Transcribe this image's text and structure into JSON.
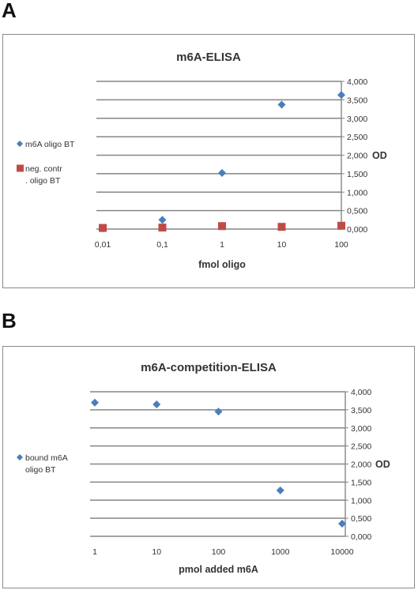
{
  "panels": [
    {
      "label": "A"
    },
    {
      "label": "B"
    }
  ],
  "chart_data": [
    {
      "type": "scatter",
      "title": "m6A-ELISA",
      "xlabel": "fmol oligo",
      "ylabel": "OD",
      "x_scale": "log",
      "x_ticks": [
        "0,01",
        "0,1",
        "1",
        "10",
        "100"
      ],
      "y_ticks": [
        "4,000",
        "3,500",
        "3,000",
        "2,500",
        "2,000",
        "1,500",
        "1,000",
        "0,500",
        "0,000"
      ],
      "ylim": [
        0,
        4
      ],
      "grid": true,
      "legend_position": "left",
      "colors": {
        "series_1": "#4a7ebb",
        "series_2": "#be4b48",
        "grid": "#868686"
      },
      "series": [
        {
          "name": "m6A oligo BT",
          "marker": "diamond",
          "x": [
            0.01,
            0.1,
            1,
            10,
            100
          ],
          "y": [
            0.02,
            0.25,
            1.52,
            3.37,
            3.63
          ]
        },
        {
          "name": "neg. contr. oligo BT",
          "marker": "square",
          "x": [
            0.01,
            0.1,
            1,
            10,
            100
          ],
          "y": [
            0.03,
            0.04,
            0.08,
            0.06,
            0.09
          ]
        }
      ]
    },
    {
      "type": "scatter",
      "title": "m6A-competition-ELISA",
      "xlabel": "pmol added m6A",
      "ylabel": "OD",
      "x_scale": "log",
      "x_ticks": [
        "1",
        "10",
        "100",
        "1000",
        "10000"
      ],
      "y_ticks": [
        "4,000",
        "3,500",
        "3,000",
        "2,500",
        "2,000",
        "1,500",
        "1,000",
        "0,500",
        "0,000"
      ],
      "ylim": [
        0,
        4
      ],
      "grid": true,
      "legend_position": "left",
      "colors": {
        "series_1": "#4a7ebb",
        "grid": "#868686"
      },
      "series": [
        {
          "name": "bound m6A oligo BT",
          "marker": "diamond",
          "x": [
            1,
            10,
            100,
            1000,
            10000
          ],
          "y": [
            3.7,
            3.65,
            3.45,
            1.27,
            0.35
          ]
        }
      ]
    }
  ]
}
